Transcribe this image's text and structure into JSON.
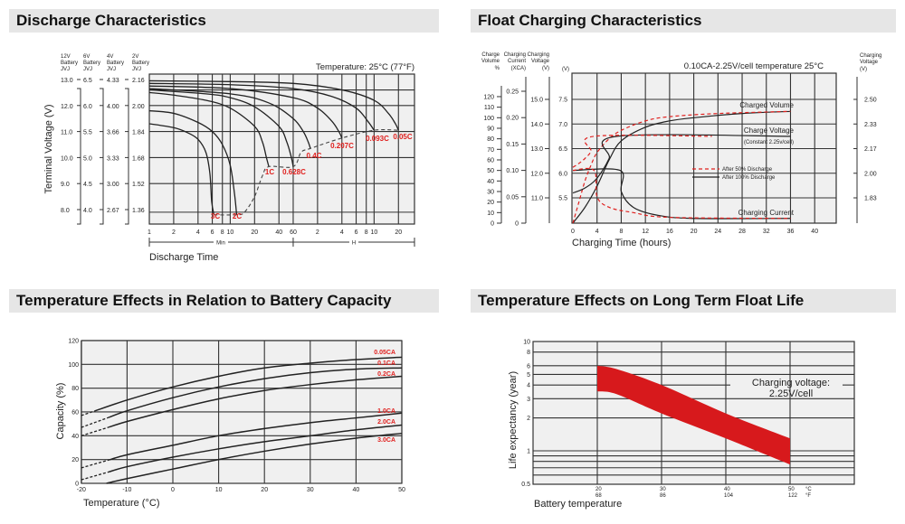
{
  "chart_data": [
    {
      "type": "line",
      "title": "Discharge Characteristics",
      "xlabel": "Discharge Time",
      "ylabel": "Terminal Voltage (V)",
      "annotation": "Temperature: 25°C (77°F)",
      "x_scale": "log",
      "x_range_label_min": "Min",
      "x_range_label_h": "H",
      "x_ticks_min": [
        1,
        2,
        4,
        6,
        8,
        10,
        20,
        40,
        60
      ],
      "x_ticks_h": [
        2,
        4,
        6,
        8,
        10,
        20
      ],
      "y_axes": [
        {
          "header": [
            "12V",
            "Battery",
            "JVJ"
          ],
          "ticks": [
            "13.0",
            "12.0",
            "11.0",
            "10.0",
            "9.0",
            "8.0"
          ]
        },
        {
          "header": [
            "6V",
            "Battery",
            "JVJ"
          ],
          "ticks": [
            "6.5",
            "6.0",
            "5.5",
            "5.0",
            "4.5",
            "4.0"
          ]
        },
        {
          "header": [
            "4V",
            "Battery",
            "JVJ"
          ],
          "ticks": [
            "4.33",
            "4.00",
            "3.66",
            "3.33",
            "3.00",
            "2.67"
          ]
        },
        {
          "header": [
            "2V",
            "Battery",
            "JVJ"
          ],
          "ticks": [
            "2.16",
            "2.00",
            "1.84",
            "1.68",
            "1.52",
            "1.36"
          ]
        }
      ],
      "series": [
        {
          "name": "3C",
          "points": [
            [
              1,
              11.3
            ],
            [
              2,
              11.15
            ],
            [
              3,
              10.95
            ],
            [
              4,
              10.7
            ],
            [
              5,
              10.2
            ],
            [
              5.6,
              9.4
            ],
            [
              5.9,
              8.3
            ],
            [
              6.3,
              7.8
            ]
          ]
        },
        {
          "name": "2C",
          "points": [
            [
              1,
              11.8
            ],
            [
              2,
              11.7
            ],
            [
              4,
              11.35
            ],
            [
              6,
              11.0
            ],
            [
              8,
              10.5
            ],
            [
              10,
              9.7
            ],
            [
              11.3,
              8.6
            ],
            [
              12,
              7.8
            ]
          ]
        },
        {
          "name": "1C",
          "points": [
            [
              1,
              12.5
            ],
            [
              2,
              12.4
            ],
            [
              5,
              12.2
            ],
            [
              10,
              11.9
            ],
            [
              20,
              11.2
            ],
            [
              25,
              10.6
            ],
            [
              28,
              10.0
            ],
            [
              30,
              9.65
            ]
          ]
        },
        {
          "name": "0.628C",
          "points": [
            [
              1,
              12.6
            ],
            [
              5,
              12.45
            ],
            [
              10,
              12.3
            ],
            [
              20,
              11.95
            ],
            [
              40,
              11.2
            ],
            [
              50,
              10.6
            ],
            [
              57,
              10.0
            ],
            [
              60,
              9.65
            ]
          ]
        },
        {
          "name": "0.4C",
          "points": [
            [
              1,
              12.65
            ],
            [
              10,
              12.45
            ],
            [
              30,
              12.1
            ],
            [
              60,
              11.5
            ],
            [
              80,
              11.0
            ],
            [
              92,
              10.6
            ],
            [
              98,
              10.35
            ]
          ]
        },
        {
          "name": "0.207C",
          "points": [
            [
              1,
              12.75
            ],
            [
              10,
              12.65
            ],
            [
              60,
              12.3
            ],
            [
              120,
              11.9
            ],
            [
              180,
              11.4
            ],
            [
              220,
              11.0
            ],
            [
              240,
              10.75
            ]
          ]
        },
        {
          "name": "0.093C",
          "points": [
            [
              1,
              12.85
            ],
            [
              10,
              12.8
            ],
            [
              60,
              12.65
            ],
            [
              180,
              12.35
            ],
            [
              360,
              11.9
            ],
            [
              500,
              11.4
            ],
            [
              600,
              11.05
            ]
          ]
        },
        {
          "name": "0.05C",
          "points": [
            [
              1,
              12.95
            ],
            [
              10,
              12.92
            ],
            [
              60,
              12.85
            ],
            [
              240,
              12.6
            ],
            [
              600,
              12.2
            ],
            [
              900,
              11.7
            ],
            [
              1100,
              11.3
            ],
            [
              1200,
              11.05
            ]
          ]
        }
      ],
      "cutoff_line": [
        [
          6.3,
          7.8
        ],
        [
          12,
          7.8
        ],
        [
          15,
          7.9
        ],
        [
          20,
          8.5
        ],
        [
          25,
          9.3
        ],
        [
          30,
          9.65
        ],
        [
          60,
          9.65
        ],
        [
          75,
          10.2
        ],
        [
          98,
          10.35
        ],
        [
          240,
          10.75
        ],
        [
          600,
          11.05
        ],
        [
          1200,
          11.05
        ]
      ],
      "x_unit": "minutes",
      "y_unit": "V (12V battery)",
      "grid": true
    },
    {
      "type": "line",
      "title": "Float Charging Characteristics",
      "xlabel": "Charging Time (hours)",
      "annotation": "0.10CA-2.25V/cell  temperature 25°C",
      "x_ticks": [
        0,
        4,
        8,
        12,
        16,
        20,
        24,
        28,
        32,
        36,
        40
      ],
      "axes": {
        "charge_volume": {
          "header": [
            "Charge",
            "Volume",
            "%"
          ],
          "ticks": [
            0,
            10,
            20,
            30,
            40,
            50,
            60,
            70,
            80,
            90,
            100,
            110,
            120
          ]
        },
        "charging_current": {
          "header": [
            "Charging",
            "Current",
            "(XCA)"
          ],
          "ticks": [
            "0",
            "0.05",
            "0.10",
            "0.15",
            "0.20",
            "0.25"
          ]
        },
        "charging_voltage_12v": {
          "header": [
            "Charging",
            "Voltage",
            "(V)"
          ],
          "ticks": [
            "11.0",
            "12.0",
            "13.0",
            "14.0",
            "15.0"
          ]
        },
        "voltage_6v": {
          "header": "(V)",
          "ticks": [
            "5.5",
            "6.0",
            "6.5",
            "7.0",
            "7.5"
          ]
        },
        "cell_voltage_right": {
          "header": [
            "Charging",
            "Voltage",
            "(V)"
          ],
          "ticks": [
            "1.83",
            "2.00",
            "2.17",
            "2.33",
            "2.50"
          ]
        }
      },
      "curve_labels": {
        "volume": "Charged Volume",
        "voltage": "Charge Voltage",
        "voltage_note": "(Constant 2.25v/cell)",
        "current": "Charging Current"
      },
      "legend": [
        {
          "name": "After  50% Discharge",
          "style": "dashed",
          "color": "#e0201e"
        },
        {
          "name": "After 100% Discharge",
          "style": "solid",
          "color": "#222222"
        }
      ],
      "series": [
        {
          "name": "Charged Volume / After 100% Discharge",
          "axis": "charge_volume",
          "points": [
            [
              0,
              0
            ],
            [
              2,
              15
            ],
            [
              4,
              35
            ],
            [
              6,
              60
            ],
            [
              8,
              78
            ],
            [
              12,
              91
            ],
            [
              16,
              97
            ],
            [
              20,
              100
            ],
            [
              28,
              104
            ],
            [
              36,
              106
            ]
          ]
        },
        {
          "name": "Charged Volume / After 50% Discharge",
          "axis": "charge_volume",
          "points": [
            [
              0,
              0
            ],
            [
              1,
              20
            ],
            [
              2,
              40
            ],
            [
              3,
              55
            ],
            [
              4,
              67
            ],
            [
              6,
              80
            ],
            [
              8,
              88
            ],
            [
              12,
              97
            ],
            [
              16,
              101
            ],
            [
              24,
              104
            ],
            [
              36,
              106
            ]
          ]
        },
        {
          "name": "Charge Voltage / After 100% Discharge",
          "axis": "voltage_6v",
          "points": [
            [
              0,
              5.6
            ],
            [
              2,
              5.7
            ],
            [
              4,
              5.9
            ],
            [
              6,
              6.3
            ],
            [
              7.3,
              6.75
            ],
            [
              36,
              6.75
            ]
          ]
        },
        {
          "name": "Charge Voltage / After 50% Discharge",
          "axis": "voltage_6v",
          "points": [
            [
              0,
              6.12
            ],
            [
              1,
              6.2
            ],
            [
              2,
              6.3
            ],
            [
              3,
              6.45
            ],
            [
              3.5,
              6.75
            ],
            [
              23,
              6.75
            ]
          ]
        },
        {
          "name": "Charging Current / After 100% Discharge",
          "axis": "charging_current",
          "points": [
            [
              0,
              0.1
            ],
            [
              7.8,
              0.1
            ],
            [
              8,
              0.06
            ],
            [
              10,
              0.03
            ],
            [
              14,
              0.015
            ],
            [
              20,
              0.009
            ],
            [
              36,
              0.009
            ]
          ]
        },
        {
          "name": "Charging Current / After 50% Discharge",
          "axis": "charging_current",
          "points": [
            [
              0,
              0.1
            ],
            [
              3.5,
              0.1
            ],
            [
              4,
              0.05
            ],
            [
              6,
              0.03
            ],
            [
              10,
              0.02
            ],
            [
              16,
              0.011
            ],
            [
              36,
              0.009
            ]
          ]
        }
      ],
      "grid": true
    },
    {
      "type": "line",
      "title": "Temperature Effects in Relation to Battery Capacity",
      "xlabel": "Temperature (°C)",
      "ylabel": "Capacity (%)",
      "x_ticks": [
        -20,
        -10,
        0,
        10,
        20,
        30,
        40,
        50
      ],
      "y_ticks": [
        0,
        20,
        40,
        60,
        80,
        100,
        120
      ],
      "xlim": [
        -20,
        50
      ],
      "ylim": [
        0,
        120
      ],
      "series": [
        {
          "name": "0.05CA",
          "dashed_below": -17,
          "points": [
            [
              -20,
              57
            ],
            [
              -10,
              70
            ],
            [
              0,
              81
            ],
            [
              10,
              90
            ],
            [
              20,
              97
            ],
            [
              30,
              101
            ],
            [
              40,
              104
            ],
            [
              50,
              106
            ]
          ]
        },
        {
          "name": "0.1CA",
          "dashed_below": -14,
          "points": [
            [
              -20,
              47
            ],
            [
              -10,
              61
            ],
            [
              0,
              72
            ],
            [
              10,
              81
            ],
            [
              20,
              88
            ],
            [
              30,
              93
            ],
            [
              40,
              96
            ],
            [
              50,
              97
            ]
          ]
        },
        {
          "name": "0.2CA",
          "dashed_below": -14,
          "points": [
            [
              -20,
              40
            ],
            [
              -10,
              52
            ],
            [
              0,
              62
            ],
            [
              10,
              71
            ],
            [
              20,
              78
            ],
            [
              30,
              83
            ],
            [
              40,
              87
            ],
            [
              50,
              90
            ]
          ]
        },
        {
          "name": "1.0CA",
          "dashed_below": -14,
          "points": [
            [
              -20,
              13
            ],
            [
              -10,
              24
            ],
            [
              0,
              32
            ],
            [
              10,
              40
            ],
            [
              20,
              46
            ],
            [
              30,
              51
            ],
            [
              40,
              55
            ],
            [
              50,
              59
            ]
          ]
        },
        {
          "name": "2.0CA",
          "dashed_below": -14,
          "points": [
            [
              -20,
              3
            ],
            [
              -10,
              14
            ],
            [
              0,
              22
            ],
            [
              10,
              29
            ],
            [
              20,
              35
            ],
            [
              30,
              40
            ],
            [
              40,
              45
            ],
            [
              50,
              49
            ]
          ]
        },
        {
          "name": "3.0CA",
          "dashed_below": -20,
          "points": [
            [
              -14.5,
              0
            ],
            [
              -10,
              4
            ],
            [
              0,
              12
            ],
            [
              10,
              20
            ],
            [
              20,
              27
            ],
            [
              30,
              33
            ],
            [
              40,
              38
            ],
            [
              50,
              42
            ]
          ]
        }
      ],
      "label_color": "#e0201e",
      "grid": true
    },
    {
      "type": "area",
      "title": "Temperature Effects on Long Term Float Life",
      "xlabel": "Battery temperature",
      "ylabel": "Life expectancy (year)",
      "y_scale": "log",
      "ylim": [
        0.5,
        10
      ],
      "y_ticks": [
        "0.5",
        "1",
        "2",
        "3",
        "4",
        "5",
        "6",
        "8",
        "10"
      ],
      "x_ticks": [
        {
          "c": "20",
          "f": "68"
        },
        {
          "c": "30",
          "f": "86"
        },
        {
          "c": "40",
          "f": "104"
        },
        {
          "c": "50",
          "f": "122"
        }
      ],
      "x_unit_c": "°C",
      "x_unit_f": "°F",
      "annotation": [
        "Charging voltage:",
        "2.25V/cell"
      ],
      "band": {
        "upper": [
          [
            20,
            6
          ],
          [
            23,
            5.6
          ],
          [
            30,
            4
          ],
          [
            40,
            2.2
          ],
          [
            50,
            1.3
          ]
        ],
        "lower": [
          [
            20,
            3.5
          ],
          [
            23,
            3.3
          ],
          [
            30,
            2.2
          ],
          [
            40,
            1.3
          ],
          [
            50,
            0.75
          ]
        ],
        "color": "#d7191c"
      },
      "grid": true
    }
  ]
}
